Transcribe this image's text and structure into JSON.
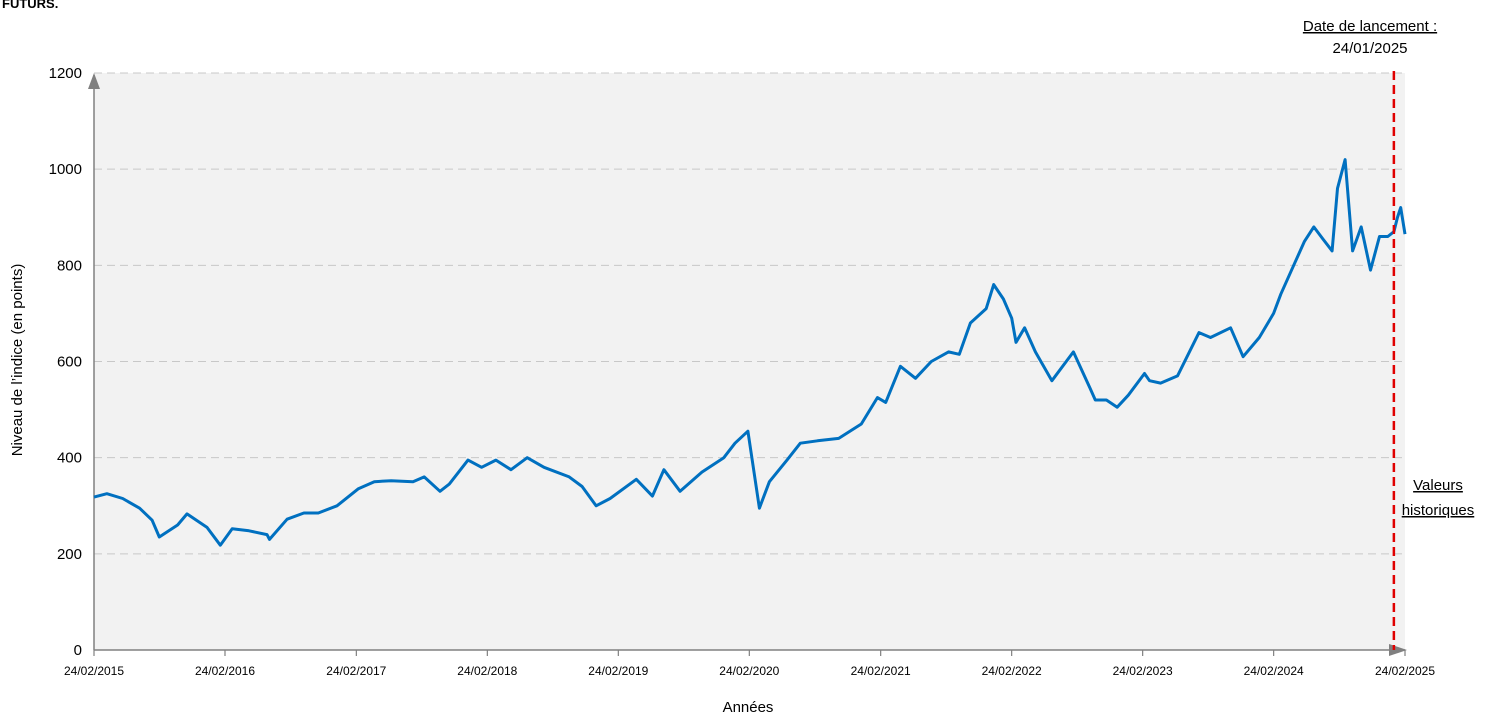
{
  "page": {
    "title": "FUTURS."
  },
  "chart_data": {
    "type": "line",
    "title": "",
    "xlabel": "Années",
    "ylabel": "Niveau de l’indice (en points)",
    "ylim": [
      0,
      1200
    ],
    "yticks": [
      0,
      200,
      400,
      600,
      800,
      1000,
      1200
    ],
    "x_range": [
      "2015-02-24",
      "2025-02-24"
    ],
    "xticks": [
      "24/02/2015",
      "24/02/2016",
      "24/02/2017",
      "24/02/2018",
      "24/02/2019",
      "24/02/2020",
      "24/02/2021",
      "24/02/2022",
      "24/02/2023",
      "24/02/2024",
      "24/02/2025"
    ],
    "grid": true,
    "colors": {
      "line": "#0070c0",
      "plot_background": "#f2f2f2",
      "launch_line": "#e00000",
      "grid": "#c8c8c8",
      "axis": "#808080"
    },
    "annotations": {
      "launch_label": "Date de lancement :",
      "launch_date_text": "24/01/2025",
      "launch_date": "2025-01-24",
      "historic_label_1": "Valeurs",
      "historic_label_2": "historiques"
    },
    "series": [
      {
        "x": [
          "2015-02-24",
          "2015-04-01",
          "2015-05-15",
          "2015-07-01",
          "2015-08-05",
          "2015-08-25",
          "2015-10-15",
          "2015-11-10",
          "2016-01-05",
          "2016-02-11",
          "2016-03-15",
          "2016-05-01",
          "2016-06-20",
          "2016-06-27",
          "2016-08-15",
          "2016-10-01",
          "2016-11-10",
          "2017-01-01",
          "2017-03-01",
          "2017-04-15",
          "2017-06-01",
          "2017-08-01",
          "2017-09-01",
          "2017-10-15",
          "2017-11-10",
          "2018-01-01",
          "2018-02-08",
          "2018-03-20",
          "2018-05-01",
          "2018-06-15",
          "2018-08-01",
          "2018-10-10",
          "2018-11-15",
          "2018-12-24",
          "2019-02-01",
          "2019-04-15",
          "2019-05-30",
          "2019-07-01",
          "2019-08-15",
          "2019-10-15",
          "2019-12-15",
          "2020-01-15",
          "2020-02-20",
          "2020-03-23",
          "2020-04-20",
          "2020-06-08",
          "2020-07-15",
          "2020-09-01",
          "2020-10-30",
          "2021-01-01",
          "2021-02-15",
          "2021-03-10",
          "2021-04-20",
          "2021-06-01",
          "2021-07-15",
          "2021-09-01",
          "2021-10-01",
          "2021-11-01",
          "2021-12-15",
          "2022-01-05",
          "2022-02-01",
          "2022-02-24",
          "2022-03-08",
          "2022-04-01",
          "2022-05-01",
          "2022-06-16",
          "2022-08-15",
          "2022-09-30",
          "2022-10-15",
          "2022-11-15",
          "2022-12-15",
          "2023-01-15",
          "2023-03-01",
          "2023-03-15",
          "2023-04-15",
          "2023-06-01",
          "2023-07-31",
          "2023-09-01",
          "2023-10-27",
          "2023-12-01",
          "2024-01-15",
          "2024-02-24",
          "2024-03-15",
          "2024-04-20",
          "2024-05-20",
          "2024-06-15",
          "2024-07-10",
          "2024-08-05",
          "2024-08-20",
          "2024-09-10",
          "2024-10-01",
          "2024-10-25",
          "2024-11-20",
          "2024-12-15",
          "2025-01-07",
          "2025-01-24",
          "2025-02-03",
          "2025-02-12",
          "2025-02-24"
        ],
        "y": [
          318,
          325,
          315,
          295,
          270,
          235,
          260,
          283,
          255,
          218,
          252,
          248,
          240,
          230,
          272,
          285,
          285,
          300,
          335,
          350,
          352,
          350,
          360,
          330,
          345,
          395,
          380,
          395,
          375,
          400,
          380,
          360,
          340,
          300,
          315,
          355,
          320,
          375,
          330,
          370,
          400,
          430,
          455,
          295,
          350,
          395,
          430,
          435,
          440,
          470,
          525,
          515,
          590,
          565,
          600,
          620,
          615,
          680,
          710,
          760,
          730,
          690,
          640,
          670,
          620,
          560,
          620,
          545,
          520,
          520,
          505,
          530,
          575,
          560,
          555,
          570,
          660,
          650,
          670,
          610,
          650,
          700,
          740,
          800,
          850,
          880,
          855,
          830,
          960,
          1020,
          830,
          880,
          790,
          860,
          860,
          870,
          900,
          920,
          865
        ]
      }
    ]
  }
}
